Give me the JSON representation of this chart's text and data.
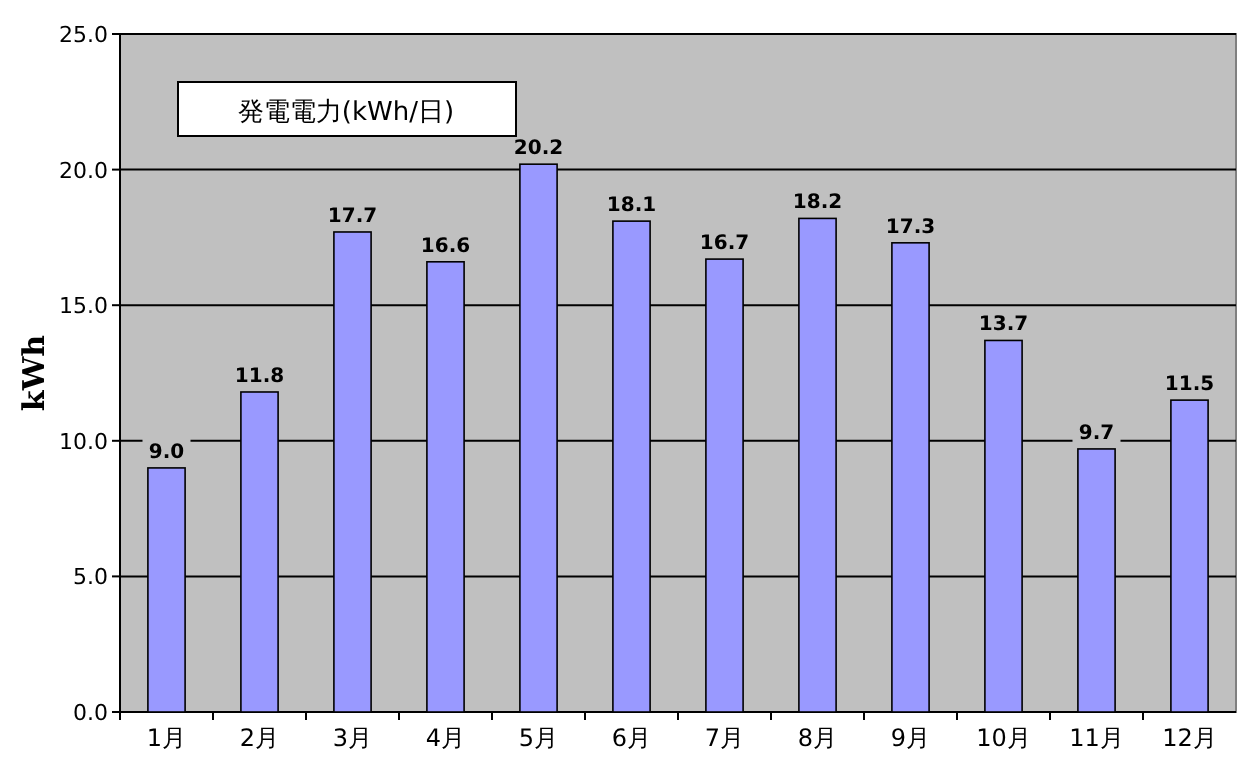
{
  "chart_data": {
    "type": "bar",
    "title": "発電電力(kWh/日)",
    "ylabel": "kWh",
    "categories": [
      "1月",
      "2月",
      "3月",
      "4月",
      "5月",
      "6月",
      "7月",
      "8月",
      "9月",
      "10月",
      "11月",
      "12月"
    ],
    "values": [
      9.0,
      11.8,
      17.7,
      16.6,
      20.2,
      18.1,
      16.7,
      18.2,
      17.3,
      13.7,
      9.7,
      11.5
    ],
    "color": "#9999ff",
    "ylim": [
      0,
      25
    ],
    "yticks": [
      {
        "value": 0,
        "label": "0.0"
      },
      {
        "value": 5,
        "label": "5.0"
      },
      {
        "value": 10,
        "label": "10.0"
      },
      {
        "value": 15,
        "label": "15.0"
      },
      {
        "value": 20,
        "label": "20.0"
      },
      {
        "value": 25,
        "label": "25.0"
      }
    ],
    "value_labels": [
      "9.0",
      "11.8",
      "17.7",
      "16.6",
      "20.2",
      "18.1",
      "16.7",
      "18.2",
      "17.3",
      "13.7",
      "9.7",
      "11.5"
    ],
    "grid": "y"
  }
}
